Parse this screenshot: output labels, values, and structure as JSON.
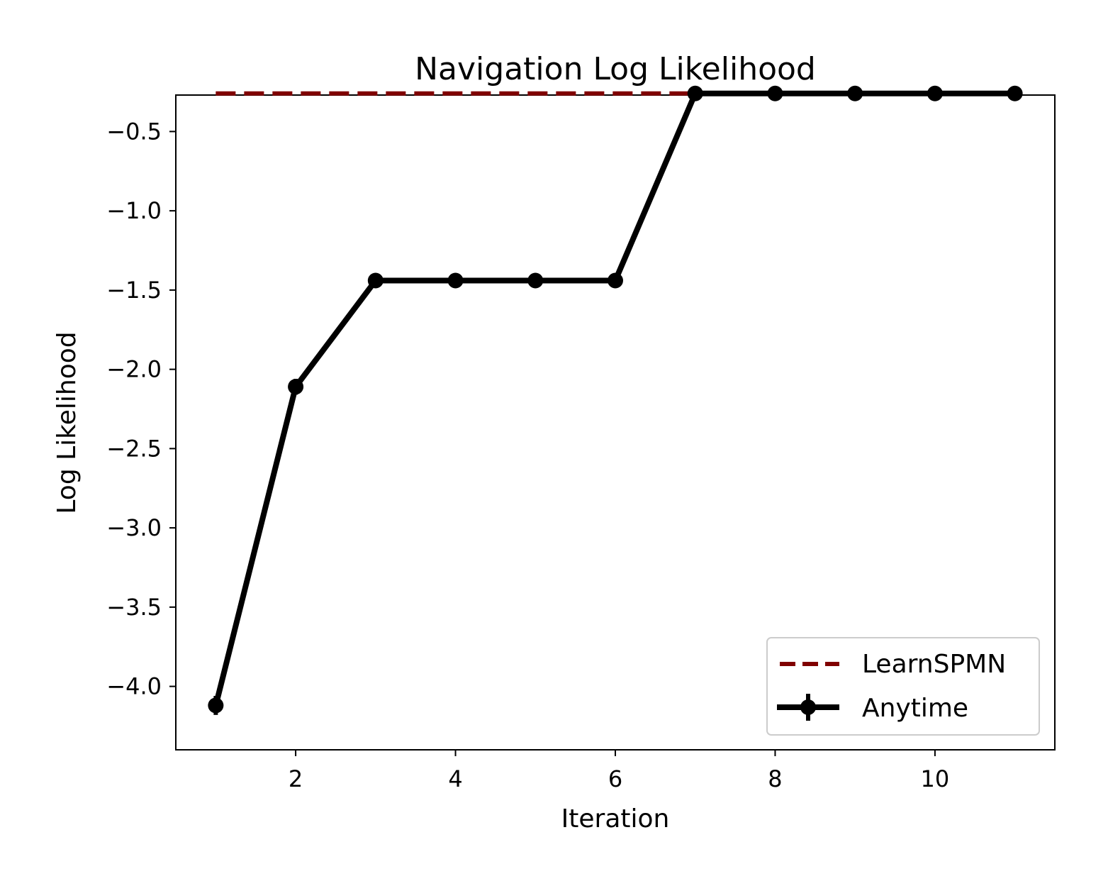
{
  "chart_data": {
    "type": "line",
    "title": "Navigation Log Likelihood",
    "xlabel": "Iteration",
    "ylabel": "Log Likelihood",
    "xlim": [
      0.5,
      11.5
    ],
    "ylim": [
      -4.4,
      -0.27
    ],
    "xticks": [
      2,
      4,
      6,
      8,
      10
    ],
    "xtick_labels": [
      "2",
      "4",
      "6",
      "8",
      "10"
    ],
    "yticks": [
      -4.0,
      -3.5,
      -3.0,
      -2.5,
      -2.0,
      -1.5,
      -1.0,
      -0.5
    ],
    "ytick_labels": [
      "−4.0",
      "−3.5",
      "−3.0",
      "−2.5",
      "−2.0",
      "−1.5",
      "−1.0",
      "−0.5"
    ],
    "grid": false,
    "legend_position": "lower-right",
    "series": [
      {
        "name": "LearnSPMN",
        "style": "dashed",
        "color": "#800000",
        "x": [
          1,
          7
        ],
        "y": [
          -0.26,
          -0.26
        ]
      },
      {
        "name": "Anytime",
        "style": "solid-markers-errorbars",
        "color": "#000000",
        "x": [
          1,
          2,
          3,
          4,
          5,
          6,
          7,
          8,
          9,
          10,
          11
        ],
        "y": [
          -4.12,
          -2.11,
          -1.44,
          -1.44,
          -1.44,
          -1.44,
          -0.26,
          -0.26,
          -0.26,
          -0.26,
          -0.26
        ],
        "yerr": [
          0.06,
          0.05,
          0.02,
          0.01,
          0.01,
          0.01,
          0.01,
          0.01,
          0.01,
          0.01,
          0.01
        ]
      }
    ]
  }
}
